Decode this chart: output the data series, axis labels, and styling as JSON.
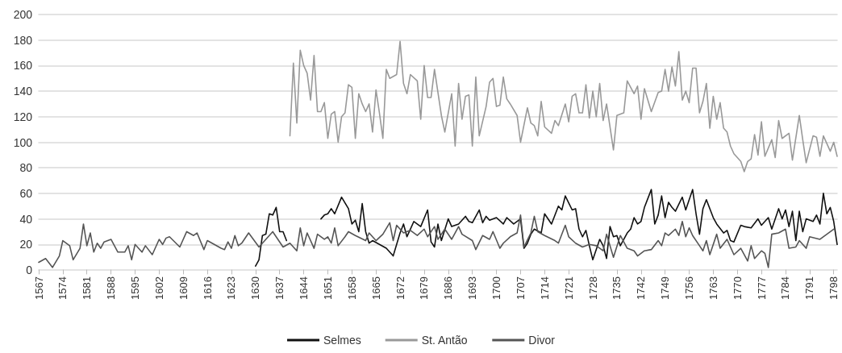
{
  "chart_data": {
    "type": "line",
    "xlim": [
      1567,
      1799
    ],
    "xticks": [
      1567,
      1574,
      1581,
      1588,
      1595,
      1602,
      1609,
      1616,
      1623,
      1630,
      1637,
      1644,
      1651,
      1658,
      1665,
      1672,
      1679,
      1686,
      1693,
      1700,
      1707,
      1714,
      1721,
      1728,
      1735,
      1742,
      1749,
      1756,
      1763,
      1770,
      1777,
      1784,
      1791,
      1798
    ],
    "ylim": [
      0,
      200
    ],
    "yticks": [
      0,
      20,
      40,
      60,
      80,
      100,
      120,
      140,
      160,
      180,
      200
    ],
    "grid": "y",
    "legend": "bottom",
    "marker": "none",
    "series": [
      {
        "name": "Selmes",
        "color": "#111111",
        "x": [
          1630,
          1631,
          1632,
          1633,
          1634,
          1635,
          1636,
          1637,
          1638,
          1639,
          1645,
          1649,
          1650,
          1651,
          1652,
          1653,
          1655,
          1657,
          1658,
          1659,
          1660,
          1661,
          1662,
          1663,
          1664,
          1666,
          1668,
          1670,
          1672,
          1673,
          1674,
          1676,
          1678,
          1680,
          1681,
          1682,
          1683,
          1684,
          1686,
          1687,
          1689,
          1691,
          1692,
          1693,
          1695,
          1696,
          1697,
          1698,
          1700,
          1702,
          1703,
          1705,
          1707,
          1708,
          1709,
          1710,
          1711,
          1713,
          1714,
          1716,
          1718,
          1719,
          1720,
          1722,
          1723,
          1724,
          1725,
          1726,
          1727,
          1728,
          1730,
          1731,
          1732,
          1733,
          1734,
          1735,
          1736,
          1738,
          1739,
          1740,
          1741,
          1742,
          1743,
          1745,
          1746,
          1747,
          1748,
          1749,
          1750,
          1751,
          1752,
          1754,
          1755,
          1757,
          1758,
          1759,
          1760,
          1761,
          1763,
          1764,
          1766,
          1767,
          1768,
          1769,
          1771,
          1772,
          1774,
          1776,
          1777,
          1779,
          1780,
          1782,
          1783,
          1784,
          1785,
          1786,
          1787,
          1788,
          1789,
          1790,
          1792,
          1793,
          1794,
          1795,
          1796,
          1797,
          1798,
          1799
        ],
        "values": [
          3,
          8,
          27,
          28,
          44,
          43,
          49,
          30,
          30,
          23,
          null,
          40,
          43,
          44,
          48,
          44,
          57,
          48,
          36,
          39,
          30,
          52,
          30,
          21,
          23,
          20,
          17,
          11,
          29,
          36,
          26,
          38,
          34,
          47,
          22,
          18,
          36,
          23,
          40,
          34,
          36,
          42,
          38,
          37,
          47,
          37,
          42,
          39,
          41,
          36,
          41,
          36,
          40,
          17,
          21,
          28,
          32,
          29,
          44,
          36,
          50,
          47,
          58,
          47,
          48,
          32,
          26,
          31,
          19,
          8,
          24,
          19,
          9,
          34,
          26,
          27,
          19,
          29,
          32,
          41,
          36,
          38,
          49,
          63,
          36,
          43,
          58,
          41,
          53,
          49,
          46,
          57,
          47,
          63,
          44,
          28,
          48,
          55,
          41,
          36,
          29,
          31,
          23,
          22,
          35,
          34,
          33,
          40,
          35,
          41,
          32,
          48,
          40,
          47,
          34,
          46,
          23,
          46,
          30,
          40,
          38,
          43,
          36,
          60,
          44,
          49,
          38,
          20
        ]
      },
      {
        "name": "St. Antão",
        "color": "#999999",
        "x": [
          1640,
          1641,
          1642,
          1643,
          1644,
          1645,
          1646,
          1647,
          1648,
          1649,
          1650,
          1651,
          1652,
          1653,
          1654,
          1655,
          1656,
          1657,
          1658,
          1659,
          1660,
          1661,
          1662,
          1663,
          1664,
          1665,
          1666,
          1667,
          1668,
          1669,
          1671,
          1672,
          1673,
          1674,
          1675,
          1677,
          1678,
          1679,
          1680,
          1681,
          1682,
          1684,
          1685,
          1687,
          1688,
          1689,
          1690,
          1691,
          1692,
          1693,
          1694,
          1695,
          1697,
          1698,
          1699,
          1700,
          1701,
          1702,
          1703,
          1704,
          1706,
          1707,
          1709,
          1710,
          1711,
          1712,
          1713,
          1714,
          1716,
          1717,
          1718,
          1720,
          1721,
          1722,
          1723,
          1724,
          1725,
          1726,
          1727,
          1728,
          1729,
          1730,
          1731,
          1732,
          1734,
          1735,
          1737,
          1738,
          1740,
          1741,
          1742,
          1743,
          1745,
          1747,
          1748,
          1749,
          1750,
          1751,
          1752,
          1753,
          1754,
          1755,
          1756,
          1757,
          1758,
          1759,
          1760,
          1761,
          1762,
          1763,
          1764,
          1765,
          1766,
          1767,
          1768,
          1769,
          1771,
          1772,
          1773,
          1774,
          1775,
          1776,
          1777,
          1778,
          1780,
          1781,
          1782,
          1783,
          1785,
          1786,
          1788,
          1789,
          1790,
          1792,
          1793,
          1794,
          1795,
          1797,
          1798,
          1799
        ],
        "values": [
          105,
          162,
          115,
          172,
          160,
          154,
          133,
          168,
          124,
          124,
          131,
          103,
          122,
          124,
          100,
          120,
          123,
          145,
          143,
          103,
          138,
          130,
          124,
          130,
          108,
          141,
          123,
          103,
          157,
          150,
          153,
          179,
          146,
          138,
          153,
          148,
          118,
          160,
          135,
          135,
          157,
          121,
          108,
          138,
          97,
          146,
          118,
          136,
          137,
          97,
          151,
          105,
          128,
          147,
          150,
          128,
          129,
          151,
          134,
          130,
          121,
          100,
          127,
          115,
          113,
          105,
          132,
          112,
          107,
          117,
          113,
          130,
          116,
          136,
          138,
          123,
          123,
          145,
          119,
          140,
          120,
          146,
          117,
          130,
          94,
          121,
          123,
          148,
          138,
          144,
          118,
          142,
          124,
          139,
          140,
          157,
          140,
          159,
          144,
          171,
          133,
          140,
          131,
          158,
          158,
          123,
          132,
          146,
          111,
          136,
          118,
          131,
          111,
          108,
          97,
          91,
          85,
          77,
          85,
          87,
          106,
          90,
          116,
          89,
          102,
          88,
          117,
          103,
          107,
          86,
          121,
          102,
          84,
          105,
          104,
          89,
          105,
          93,
          100,
          89
        ]
      },
      {
        "name": "Divor",
        "color": "#555555",
        "x": [
          1567,
          1569,
          1571,
          1573,
          1574,
          1576,
          1577,
          1579,
          1580,
          1581,
          1582,
          1583,
          1584,
          1585,
          1586,
          1588,
          1590,
          1592,
          1593,
          1594,
          1595,
          1597,
          1598,
          1600,
          1602,
          1603,
          1604,
          1605,
          1608,
          1610,
          1612,
          1613,
          1615,
          1616,
          1618,
          1620,
          1621,
          1622,
          1623,
          1624,
          1625,
          1626,
          1628,
          1631,
          1633,
          1635,
          1638,
          1640,
          1642,
          1643,
          1644,
          1645,
          1647,
          1648,
          1650,
          1651,
          1652,
          1653,
          1654,
          1656,
          1657,
          1659,
          1662,
          1663,
          1665,
          1667,
          1669,
          1670,
          1671,
          1673,
          1675,
          1677,
          1679,
          1680,
          1682,
          1683,
          1685,
          1687,
          1689,
          1690,
          1693,
          1694,
          1696,
          1698,
          1699,
          1701,
          1702,
          1704,
          1706,
          1707,
          1708,
          1710,
          1711,
          1712,
          1714,
          1717,
          1718,
          1720,
          1721,
          1723,
          1725,
          1727,
          1729,
          1731,
          1732,
          1734,
          1736,
          1738,
          1740,
          1741,
          1743,
          1745,
          1747,
          1748,
          1749,
          1750,
          1752,
          1753,
          1754,
          1755,
          1756,
          1757,
          1759,
          1760,
          1761,
          1762,
          1764,
          1765,
          1767,
          1768,
          1769,
          1771,
          1773,
          1774,
          1775,
          1777,
          1778,
          1779,
          1780,
          1782,
          1784,
          1785,
          1787,
          1788,
          1790,
          1791,
          1794,
          1796,
          1798
        ],
        "values": [
          6,
          9,
          2,
          11,
          23,
          19,
          8,
          17,
          36,
          19,
          29,
          14,
          21,
          17,
          22,
          24,
          14,
          14,
          19,
          8,
          20,
          14,
          19,
          12,
          24,
          20,
          25,
          26,
          18,
          30,
          27,
          29,
          16,
          23,
          20,
          17,
          16,
          22,
          17,
          27,
          19,
          21,
          29,
          18,
          24,
          30,
          18,
          21,
          15,
          33,
          19,
          29,
          17,
          28,
          24,
          26,
          21,
          33,
          19,
          26,
          30,
          27,
          23,
          29,
          23,
          28,
          37,
          23,
          35,
          29,
          31,
          27,
          32,
          26,
          34,
          24,
          32,
          24,
          34,
          28,
          23,
          16,
          27,
          24,
          30,
          17,
          21,
          26,
          29,
          43,
          18,
          29,
          42,
          30,
          27,
          23,
          21,
          35,
          26,
          21,
          18,
          20,
          19,
          15,
          28,
          10,
          27,
          17,
          15,
          11,
          15,
          16,
          23,
          19,
          29,
          27,
          32,
          27,
          38,
          26,
          33,
          27,
          19,
          15,
          23,
          12,
          28,
          17,
          24,
          18,
          12,
          17,
          7,
          19,
          9,
          15,
          13,
          2,
          28,
          29,
          32,
          17,
          18,
          23,
          17,
          26,
          24,
          28,
          32
        ]
      }
    ]
  }
}
